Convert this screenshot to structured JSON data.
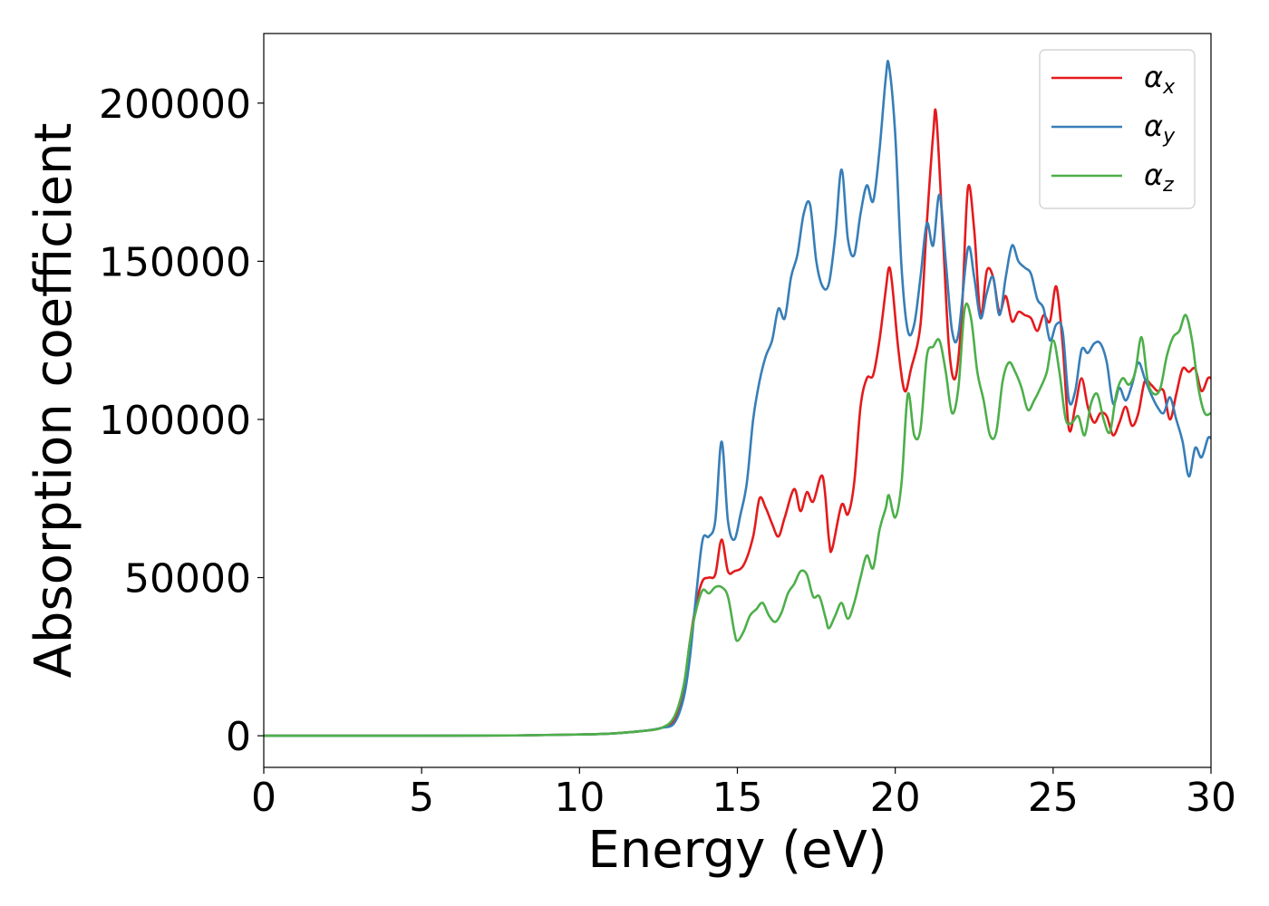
{
  "chart_data": {
    "type": "line",
    "xlabel": "Energy (eV)",
    "ylabel": "Absorption coefficient",
    "xlim": [
      0,
      30
    ],
    "ylim": [
      -10000,
      222000
    ],
    "x_ticks": [
      0,
      5,
      10,
      15,
      20,
      25,
      30
    ],
    "y_ticks": [
      0,
      50000,
      100000,
      150000,
      200000
    ],
    "grid": false,
    "legend_position": "top-right",
    "series": [
      {
        "name": "α_x",
        "label_base": "α",
        "label_sub": "x",
        "color": "#e41a1c",
        "points": [
          [
            0,
            0
          ],
          [
            5,
            0
          ],
          [
            8,
            100
          ],
          [
            10,
            400
          ],
          [
            11,
            700
          ],
          [
            12,
            1500
          ],
          [
            12.6,
            2500
          ],
          [
            13,
            5000
          ],
          [
            13.3,
            15000
          ],
          [
            13.5,
            30000
          ],
          [
            13.7,
            42000
          ],
          [
            13.9,
            49000
          ],
          [
            14.1,
            50000
          ],
          [
            14.3,
            51000
          ],
          [
            14.5,
            62000
          ],
          [
            14.7,
            52000
          ],
          [
            14.9,
            52000
          ],
          [
            15.2,
            54000
          ],
          [
            15.5,
            63000
          ],
          [
            15.7,
            75000
          ],
          [
            15.9,
            72000
          ],
          [
            16.1,
            67000
          ],
          [
            16.3,
            63000
          ],
          [
            16.5,
            69000
          ],
          [
            16.8,
            78000
          ],
          [
            17.0,
            71000
          ],
          [
            17.2,
            77000
          ],
          [
            17.4,
            74000
          ],
          [
            17.7,
            82000
          ],
          [
            17.9,
            62000
          ],
          [
            18.0,
            59000
          ],
          [
            18.3,
            73000
          ],
          [
            18.5,
            70000
          ],
          [
            18.7,
            80000
          ],
          [
            18.9,
            104000
          ],
          [
            19.1,
            113000
          ],
          [
            19.3,
            114000
          ],
          [
            19.5,
            125000
          ],
          [
            19.7,
            141000
          ],
          [
            19.8,
            148000
          ],
          [
            19.9,
            143000
          ],
          [
            20.1,
            122000
          ],
          [
            20.3,
            109000
          ],
          [
            20.5,
            116000
          ],
          [
            20.8,
            130000
          ],
          [
            21.0,
            162000
          ],
          [
            21.2,
            190000
          ],
          [
            21.3,
            196000
          ],
          [
            21.5,
            160000
          ],
          [
            21.7,
            123000
          ],
          [
            21.9,
            113000
          ],
          [
            22.1,
            132000
          ],
          [
            22.3,
            173000
          ],
          [
            22.5,
            160000
          ],
          [
            22.7,
            133000
          ],
          [
            22.9,
            147000
          ],
          [
            23.1,
            145000
          ],
          [
            23.3,
            134000
          ],
          [
            23.5,
            139000
          ],
          [
            23.7,
            131000
          ],
          [
            23.9,
            134000
          ],
          [
            24.1,
            133000
          ],
          [
            24.3,
            132000
          ],
          [
            24.5,
            128000
          ],
          [
            24.7,
            133000
          ],
          [
            24.9,
            131000
          ],
          [
            25.1,
            142000
          ],
          [
            25.3,
            124000
          ],
          [
            25.5,
            97000
          ],
          [
            25.7,
            104000
          ],
          [
            25.9,
            113000
          ],
          [
            26.1,
            104000
          ],
          [
            26.3,
            99000
          ],
          [
            26.5,
            102000
          ],
          [
            26.7,
            101000
          ],
          [
            26.9,
            95000
          ],
          [
            27.1,
            99000
          ],
          [
            27.3,
            104000
          ],
          [
            27.5,
            98000
          ],
          [
            27.7,
            102000
          ],
          [
            27.9,
            112000
          ],
          [
            28.1,
            111000
          ],
          [
            28.3,
            109000
          ],
          [
            28.5,
            109000
          ],
          [
            28.7,
            100000
          ],
          [
            28.9,
            108000
          ],
          [
            29.1,
            116000
          ],
          [
            29.3,
            115000
          ],
          [
            29.5,
            116000
          ],
          [
            29.7,
            109000
          ],
          [
            29.9,
            113000
          ],
          [
            30.0,
            113000
          ]
        ]
      },
      {
        "name": "α_y",
        "label_base": "α",
        "label_sub": "y",
        "color": "#377eb8",
        "points": [
          [
            0,
            0
          ],
          [
            5,
            0
          ],
          [
            8,
            100
          ],
          [
            10,
            400
          ],
          [
            11,
            700
          ],
          [
            12,
            1500
          ],
          [
            12.6,
            2500
          ],
          [
            13,
            4000
          ],
          [
            13.3,
            12000
          ],
          [
            13.5,
            25000
          ],
          [
            13.7,
            45000
          ],
          [
            13.9,
            62000
          ],
          [
            14.1,
            63000
          ],
          [
            14.3,
            68000
          ],
          [
            14.5,
            93000
          ],
          [
            14.7,
            68000
          ],
          [
            14.9,
            62000
          ],
          [
            15.1,
            70000
          ],
          [
            15.3,
            80000
          ],
          [
            15.5,
            100000
          ],
          [
            15.7,
            112000
          ],
          [
            15.9,
            120000
          ],
          [
            16.1,
            125000
          ],
          [
            16.3,
            135000
          ],
          [
            16.5,
            132000
          ],
          [
            16.7,
            145000
          ],
          [
            16.9,
            152000
          ],
          [
            17.1,
            165000
          ],
          [
            17.3,
            168000
          ],
          [
            17.5,
            150000
          ],
          [
            17.7,
            142000
          ],
          [
            17.9,
            143000
          ],
          [
            18.1,
            158000
          ],
          [
            18.3,
            179000
          ],
          [
            18.5,
            157000
          ],
          [
            18.7,
            152000
          ],
          [
            18.9,
            165000
          ],
          [
            19.1,
            174000
          ],
          [
            19.3,
            169000
          ],
          [
            19.5,
            185000
          ],
          [
            19.7,
            208000
          ],
          [
            19.8,
            212000
          ],
          [
            20.0,
            190000
          ],
          [
            20.2,
            148000
          ],
          [
            20.4,
            128000
          ],
          [
            20.6,
            130000
          ],
          [
            20.8,
            145000
          ],
          [
            21.0,
            162000
          ],
          [
            21.2,
            155000
          ],
          [
            21.4,
            171000
          ],
          [
            21.6,
            150000
          ],
          [
            21.8,
            128000
          ],
          [
            22.0,
            127000
          ],
          [
            22.3,
            154000
          ],
          [
            22.5,
            145000
          ],
          [
            22.7,
            132000
          ],
          [
            22.9,
            140000
          ],
          [
            23.1,
            145000
          ],
          [
            23.3,
            133000
          ],
          [
            23.5,
            145000
          ],
          [
            23.7,
            155000
          ],
          [
            23.9,
            150000
          ],
          [
            24.1,
            148000
          ],
          [
            24.3,
            146000
          ],
          [
            24.5,
            138000
          ],
          [
            24.7,
            135000
          ],
          [
            24.9,
            125000
          ],
          [
            25.1,
            130000
          ],
          [
            25.3,
            128000
          ],
          [
            25.5,
            106000
          ],
          [
            25.7,
            109000
          ],
          [
            25.9,
            122000
          ],
          [
            26.1,
            121000
          ],
          [
            26.3,
            124000
          ],
          [
            26.5,
            124000
          ],
          [
            26.7,
            118000
          ],
          [
            26.9,
            105000
          ],
          [
            27.1,
            110000
          ],
          [
            27.3,
            106000
          ],
          [
            27.5,
            111000
          ],
          [
            27.7,
            118000
          ],
          [
            27.9,
            113000
          ],
          [
            28.1,
            108000
          ],
          [
            28.3,
            104000
          ],
          [
            28.5,
            102000
          ],
          [
            28.7,
            107000
          ],
          [
            28.9,
            100000
          ],
          [
            29.1,
            93000
          ],
          [
            29.3,
            82000
          ],
          [
            29.5,
            91000
          ],
          [
            29.7,
            88000
          ],
          [
            29.9,
            94000
          ],
          [
            30.0,
            94000
          ]
        ]
      },
      {
        "name": "α_z",
        "label_base": "α",
        "label_sub": "z",
        "color": "#4daf4a",
        "points": [
          [
            0,
            0
          ],
          [
            5,
            0
          ],
          [
            8,
            100
          ],
          [
            10,
            400
          ],
          [
            11,
            700
          ],
          [
            12,
            1500
          ],
          [
            12.6,
            2500
          ],
          [
            13,
            6000
          ],
          [
            13.3,
            16000
          ],
          [
            13.5,
            30000
          ],
          [
            13.7,
            40000
          ],
          [
            13.9,
            46000
          ],
          [
            14.1,
            45000
          ],
          [
            14.3,
            47000
          ],
          [
            14.5,
            47000
          ],
          [
            14.7,
            44000
          ],
          [
            14.9,
            33000
          ],
          [
            15.0,
            30000
          ],
          [
            15.2,
            33000
          ],
          [
            15.4,
            38000
          ],
          [
            15.6,
            40000
          ],
          [
            15.8,
            42000
          ],
          [
            16.0,
            38000
          ],
          [
            16.2,
            36000
          ],
          [
            16.4,
            39000
          ],
          [
            16.6,
            45000
          ],
          [
            16.8,
            48000
          ],
          [
            17.0,
            52000
          ],
          [
            17.2,
            51000
          ],
          [
            17.4,
            44000
          ],
          [
            17.6,
            44000
          ],
          [
            17.8,
            37000
          ],
          [
            17.9,
            34000
          ],
          [
            18.1,
            38000
          ],
          [
            18.3,
            42000
          ],
          [
            18.5,
            37000
          ],
          [
            18.7,
            42000
          ],
          [
            18.9,
            50000
          ],
          [
            19.1,
            57000
          ],
          [
            19.3,
            53000
          ],
          [
            19.5,
            65000
          ],
          [
            19.7,
            72000
          ],
          [
            19.8,
            76000
          ],
          [
            20.0,
            69000
          ],
          [
            20.2,
            80000
          ],
          [
            20.4,
            108000
          ],
          [
            20.6,
            95000
          ],
          [
            20.8,
            97000
          ],
          [
            21.0,
            120000
          ],
          [
            21.2,
            123000
          ],
          [
            21.4,
            125000
          ],
          [
            21.6,
            115000
          ],
          [
            21.8,
            102000
          ],
          [
            22.0,
            110000
          ],
          [
            22.2,
            135000
          ],
          [
            22.4,
            132000
          ],
          [
            22.6,
            115000
          ],
          [
            22.8,
            106000
          ],
          [
            23.0,
            95000
          ],
          [
            23.2,
            96000
          ],
          [
            23.4,
            112000
          ],
          [
            23.6,
            118000
          ],
          [
            23.8,
            115000
          ],
          [
            24.0,
            110000
          ],
          [
            24.2,
            103000
          ],
          [
            24.4,
            106000
          ],
          [
            24.6,
            110000
          ],
          [
            24.8,
            115000
          ],
          [
            25.0,
            125000
          ],
          [
            25.2,
            115000
          ],
          [
            25.4,
            100000
          ],
          [
            25.6,
            99000
          ],
          [
            25.8,
            101000
          ],
          [
            26.0,
            95000
          ],
          [
            26.2,
            105000
          ],
          [
            26.4,
            108000
          ],
          [
            26.6,
            100000
          ],
          [
            26.8,
            96000
          ],
          [
            27.0,
            108000
          ],
          [
            27.2,
            113000
          ],
          [
            27.4,
            111000
          ],
          [
            27.6,
            115000
          ],
          [
            27.8,
            126000
          ],
          [
            28.0,
            112000
          ],
          [
            28.2,
            108000
          ],
          [
            28.4,
            110000
          ],
          [
            28.6,
            120000
          ],
          [
            28.8,
            126000
          ],
          [
            29.0,
            128000
          ],
          [
            29.2,
            133000
          ],
          [
            29.4,
            125000
          ],
          [
            29.6,
            110000
          ],
          [
            29.8,
            102000
          ],
          [
            30.0,
            102000
          ]
        ]
      }
    ]
  }
}
